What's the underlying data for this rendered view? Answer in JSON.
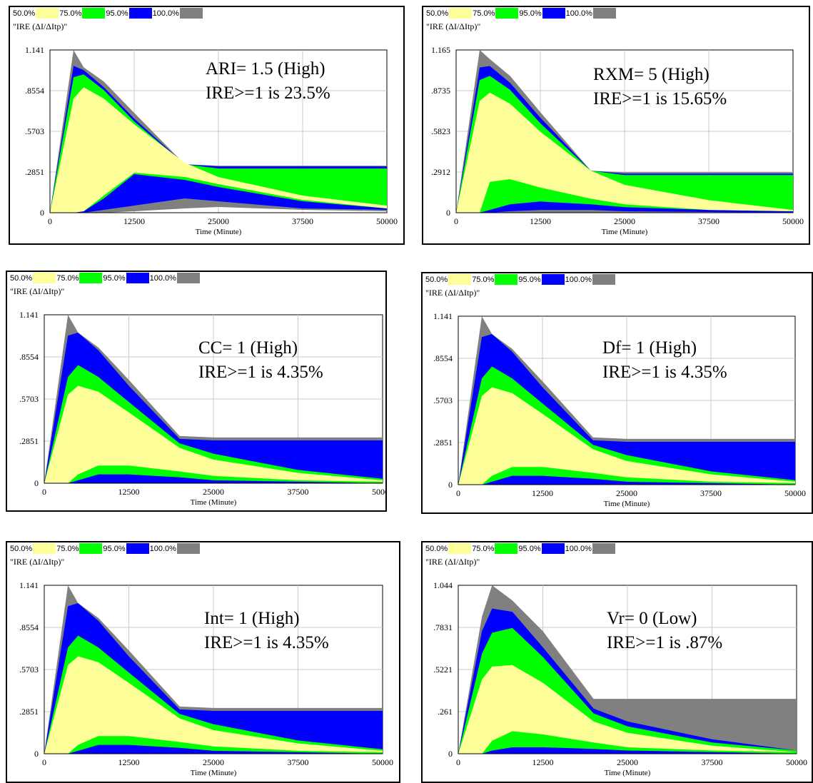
{
  "legend": {
    "items": [
      {
        "label": "50.0%",
        "color": "#ffff99"
      },
      {
        "label": "75.0%",
        "color": "#00ff00"
      },
      {
        "label": "95.0%",
        "color": "#0000ff"
      },
      {
        "label": "100.0%",
        "color": "#808080"
      }
    ]
  },
  "variable_label": "\"IRE (ΔI/ΔItp)\"",
  "x_axis": {
    "title": "Time (Minute)",
    "ticks": [
      "0",
      "12500",
      "25000",
      "37500",
      "50000"
    ]
  },
  "panels": [
    {
      "annotation": [
        "ARI= 1.5 (High)",
        "IRE>=1 is 23.5%"
      ],
      "y_ticks": [
        "1.141",
        ".8554",
        ".5703",
        ".2851",
        "0"
      ]
    },
    {
      "annotation": [
        "RXM= 5 (High)",
        "IRE>=1 is 15.65%"
      ],
      "y_ticks": [
        "1.165",
        ".8735",
        ".5823",
        ".2912",
        "0"
      ]
    },
    {
      "annotation": [
        "CC= 1 (High)",
        "IRE>=1 is 4.35%"
      ],
      "y_ticks": [
        "1.141",
        ".8554",
        ".5703",
        ".2851",
        "0"
      ]
    },
    {
      "annotation": [
        "Df= 1 (High)",
        "IRE>=1 is 4.35%"
      ],
      "y_ticks": [
        "1.141",
        ".8554",
        ".5703",
        ".2851",
        "0"
      ]
    },
    {
      "annotation": [
        "Int= 1 (High)",
        "IRE>=1 is 4.35%"
      ],
      "y_ticks": [
        "1.141",
        ".8554",
        ".5703",
        ".2851",
        "0"
      ]
    },
    {
      "annotation": [
        "Vr= 0 (Low)",
        " IRE>=1 is .87%"
      ],
      "y_ticks": [
        "1.044",
        ".7831",
        ".5221",
        ".261",
        "0"
      ]
    }
  ],
  "chart_data": [
    {
      "type": "area",
      "xlabel": "Time (Minute)",
      "ylabel": "\"IRE (ΔI/ΔItp)\"",
      "xlim": [
        0,
        50000
      ],
      "ylim": [
        0,
        1.141
      ],
      "grid": true,
      "legend": "top",
      "x": [
        0,
        3500,
        5000,
        8000,
        12500,
        20000,
        25000,
        37500,
        50000
      ],
      "bands": [
        {
          "name": "100.0%",
          "upper": [
            0,
            1.141,
            1.02,
            0.92,
            0.7,
            0.34,
            0.33,
            0.33,
            0.33
          ],
          "lower": [
            0,
            0,
            0,
            0,
            0.01,
            0.03,
            0.04,
            0.02,
            0.01
          ]
        },
        {
          "name": "95.0%",
          "upper": [
            0,
            1.03,
            1.0,
            0.88,
            0.66,
            0.34,
            0.325,
            0.325,
            0.325
          ],
          "lower": [
            0,
            0,
            0,
            0.02,
            0.05,
            0.1,
            0.08,
            0.03,
            0.02
          ]
        },
        {
          "name": "75.0%",
          "upper": [
            0,
            0.95,
            0.97,
            0.86,
            0.64,
            0.34,
            0.31,
            0.31,
            0.31
          ],
          "lower": [
            0,
            0,
            0.01,
            0.1,
            0.27,
            0.23,
            0.18,
            0.08,
            0.03
          ]
        },
        {
          "name": "50.0%",
          "upper": [
            0,
            0.8,
            0.88,
            0.8,
            0.62,
            0.35,
            0.25,
            0.12,
            0.05
          ],
          "lower": [
            0,
            0,
            0.01,
            0.12,
            0.28,
            0.25,
            0.2,
            0.09,
            0.03
          ]
        }
      ]
    },
    {
      "type": "area",
      "xlabel": "Time (Minute)",
      "ylabel": "\"IRE (ΔI/ΔItp)\"",
      "xlim": [
        0,
        50000
      ],
      "ylim": [
        0,
        1.165
      ],
      "grid": true,
      "legend": "top",
      "x": [
        0,
        3500,
        5000,
        8000,
        12500,
        20000,
        25000,
        37500,
        50000
      ],
      "bands": [
        {
          "name": "100.0%",
          "upper": [
            0,
            1.165,
            1.1,
            0.98,
            0.72,
            0.3,
            0.29,
            0.29,
            0.29
          ],
          "lower": [
            0,
            0,
            0,
            0,
            0,
            0,
            0,
            0,
            0
          ]
        },
        {
          "name": "95.0%",
          "upper": [
            0,
            1.04,
            1.05,
            0.93,
            0.68,
            0.3,
            0.28,
            0.28,
            0.28
          ],
          "lower": [
            0,
            0,
            0,
            0.01,
            0.02,
            0.02,
            0.01,
            0.005,
            0
          ]
        },
        {
          "name": "75.0%",
          "upper": [
            0,
            0.95,
            0.98,
            0.88,
            0.64,
            0.3,
            0.27,
            0.27,
            0.27
          ],
          "lower": [
            0,
            0,
            0.02,
            0.06,
            0.08,
            0.06,
            0.04,
            0.02,
            0.01
          ]
        },
        {
          "name": "50.0%",
          "upper": [
            0,
            0.8,
            0.86,
            0.78,
            0.58,
            0.3,
            0.2,
            0.09,
            0.02
          ],
          "lower": [
            0,
            0,
            0.22,
            0.24,
            0.18,
            0.1,
            0.06,
            0.02,
            0.01
          ]
        }
      ]
    },
    {
      "type": "area",
      "xlabel": "Time (Minute)",
      "ylabel": "\"IRE (ΔI/ΔItp)\"",
      "xlim": [
        0,
        50000
      ],
      "ylim": [
        0,
        1.141
      ],
      "grid": true,
      "legend": "top",
      "x": [
        0,
        3500,
        5000,
        8000,
        12500,
        20000,
        25000,
        37500,
        50000
      ],
      "bands": [
        {
          "name": "100.0%",
          "upper": [
            0,
            1.141,
            1.02,
            0.92,
            0.7,
            0.32,
            0.31,
            0.31,
            0.31
          ],
          "lower": [
            0,
            0,
            0,
            0,
            0,
            0,
            0,
            0,
            0
          ]
        },
        {
          "name": "95.0%",
          "upper": [
            0,
            1.0,
            1.02,
            0.9,
            0.66,
            0.3,
            0.29,
            0.29,
            0.29
          ],
          "lower": [
            0,
            0,
            0,
            0,
            0,
            0,
            0,
            0,
            0
          ]
        },
        {
          "name": "75.0%",
          "upper": [
            0,
            0.72,
            0.8,
            0.72,
            0.55,
            0.27,
            0.2,
            0.09,
            0.03
          ],
          "lower": [
            0,
            0,
            0.02,
            0.06,
            0.06,
            0.04,
            0.02,
            0.01,
            0
          ]
        },
        {
          "name": "50.0%",
          "upper": [
            0,
            0.6,
            0.66,
            0.62,
            0.48,
            0.24,
            0.16,
            0.07,
            0.02
          ],
          "lower": [
            0,
            0,
            0.06,
            0.12,
            0.12,
            0.08,
            0.05,
            0.02,
            0.01
          ]
        }
      ]
    },
    {
      "type": "area",
      "xlabel": "Time (Minute)",
      "ylabel": "\"IRE (ΔI/ΔItp)\"",
      "xlim": [
        0,
        50000
      ],
      "ylim": [
        0,
        1.141
      ],
      "grid": true,
      "legend": "top",
      "x": [
        0,
        3500,
        5000,
        8000,
        12500,
        20000,
        25000,
        37500,
        50000
      ],
      "bands": [
        {
          "name": "100.0%",
          "upper": [
            0,
            1.141,
            1.02,
            0.92,
            0.7,
            0.32,
            0.31,
            0.31,
            0.31
          ],
          "lower": [
            0,
            0,
            0,
            0,
            0,
            0,
            0,
            0,
            0
          ]
        },
        {
          "name": "95.0%",
          "upper": [
            0,
            1.0,
            1.02,
            0.9,
            0.66,
            0.3,
            0.29,
            0.29,
            0.29
          ],
          "lower": [
            0,
            0,
            0,
            0,
            0,
            0,
            0,
            0,
            0
          ]
        },
        {
          "name": "75.0%",
          "upper": [
            0,
            0.72,
            0.8,
            0.72,
            0.55,
            0.27,
            0.2,
            0.09,
            0.03
          ],
          "lower": [
            0,
            0,
            0.02,
            0.06,
            0.06,
            0.04,
            0.02,
            0.01,
            0
          ]
        },
        {
          "name": "50.0%",
          "upper": [
            0,
            0.6,
            0.66,
            0.62,
            0.48,
            0.24,
            0.16,
            0.07,
            0.02
          ],
          "lower": [
            0,
            0,
            0.06,
            0.12,
            0.12,
            0.08,
            0.05,
            0.02,
            0.01
          ]
        }
      ]
    },
    {
      "type": "area",
      "xlabel": "Time (Minute)",
      "ylabel": "\"IRE (ΔI/ΔItp)\"",
      "xlim": [
        0,
        50000
      ],
      "ylim": [
        0,
        1.141
      ],
      "grid": true,
      "legend": "top",
      "x": [
        0,
        3500,
        5000,
        8000,
        12500,
        20000,
        25000,
        37500,
        50000
      ],
      "bands": [
        {
          "name": "100.0%",
          "upper": [
            0,
            1.141,
            1.02,
            0.92,
            0.7,
            0.32,
            0.31,
            0.31,
            0.31
          ],
          "lower": [
            0,
            0,
            0,
            0,
            0,
            0,
            0,
            0,
            0
          ]
        },
        {
          "name": "95.0%",
          "upper": [
            0,
            1.0,
            1.02,
            0.9,
            0.66,
            0.3,
            0.29,
            0.29,
            0.29
          ],
          "lower": [
            0,
            0,
            0,
            0,
            0,
            0,
            0,
            0,
            0
          ]
        },
        {
          "name": "75.0%",
          "upper": [
            0,
            0.72,
            0.8,
            0.72,
            0.55,
            0.27,
            0.2,
            0.09,
            0.03
          ],
          "lower": [
            0,
            0,
            0.02,
            0.06,
            0.06,
            0.04,
            0.02,
            0.01,
            0
          ]
        },
        {
          "name": "50.0%",
          "upper": [
            0,
            0.6,
            0.66,
            0.62,
            0.48,
            0.24,
            0.16,
            0.07,
            0.02
          ],
          "lower": [
            0,
            0,
            0.06,
            0.12,
            0.12,
            0.08,
            0.05,
            0.02,
            0.01
          ]
        }
      ]
    },
    {
      "type": "area",
      "xlabel": "Time (Minute)",
      "ylabel": "\"IRE (ΔI/ΔItp)\"",
      "xlim": [
        0,
        50000
      ],
      "ylim": [
        0,
        1.044
      ],
      "grid": true,
      "legend": "top",
      "x": [
        0,
        3500,
        5000,
        8000,
        12500,
        20000,
        25000,
        37500,
        50000
      ],
      "bands": [
        {
          "name": "100.0%",
          "upper": [
            0,
            0.85,
            1.044,
            0.95,
            0.76,
            0.34,
            0.34,
            0.34,
            0.34
          ],
          "lower": [
            0,
            0,
            0,
            0,
            0,
            0,
            0,
            0,
            0
          ]
        },
        {
          "name": "95.0%",
          "upper": [
            0,
            0.76,
            0.9,
            0.88,
            0.66,
            0.28,
            0.2,
            0.09,
            0.02
          ],
          "lower": [
            0,
            0,
            0,
            0,
            0,
            0,
            0,
            0,
            0
          ]
        },
        {
          "name": "75.0%",
          "upper": [
            0,
            0.62,
            0.75,
            0.78,
            0.6,
            0.25,
            0.17,
            0.07,
            0.02
          ],
          "lower": [
            0,
            0,
            0.02,
            0.04,
            0.04,
            0.03,
            0.02,
            0.01,
            0
          ]
        },
        {
          "name": "50.0%",
          "upper": [
            0,
            0.46,
            0.54,
            0.55,
            0.44,
            0.2,
            0.13,
            0.05,
            0.01
          ],
          "lower": [
            0,
            0,
            0.08,
            0.14,
            0.12,
            0.07,
            0.04,
            0.02,
            0.01
          ]
        }
      ]
    }
  ]
}
